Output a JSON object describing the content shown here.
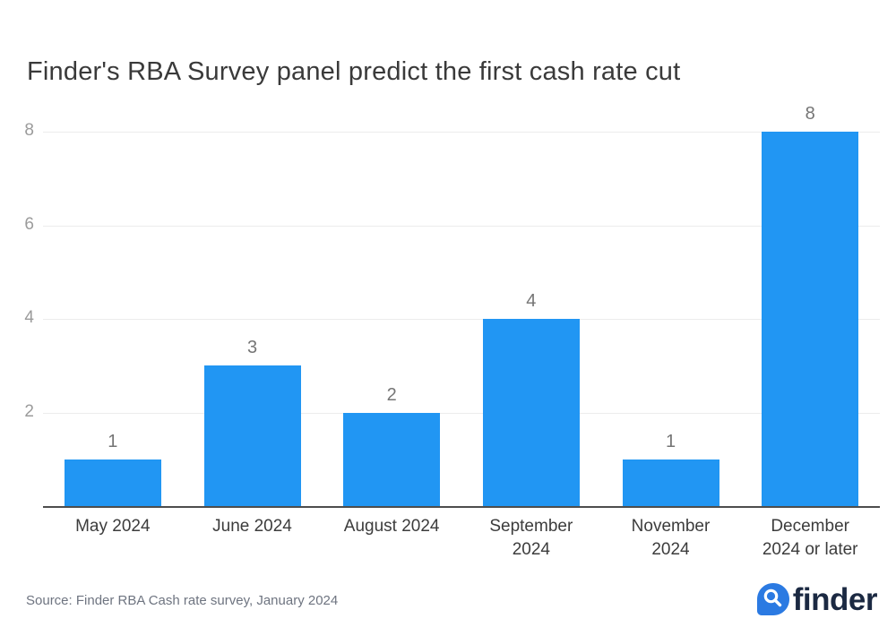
{
  "title": "Finder's RBA Survey panel predict the first cash rate cut",
  "source": "Source: Finder RBA Cash rate survey, January 2024",
  "logo": {
    "text": "finder",
    "icon": "magnifier-bubble-icon",
    "icon_color": "#2b7ae2",
    "text_color": "#1b2942"
  },
  "colors": {
    "bar": "#2196f3",
    "gridline": "#ececec",
    "axis_line": "#4d4d4d",
    "tick_label": "#9b9b9b",
    "data_label": "#757575",
    "category_label": "#3c3c3c",
    "title": "#3a3a3a",
    "source": "#6e7480"
  },
  "chart_data": {
    "type": "bar",
    "title": "Finder's RBA Survey panel predict the first cash rate cut",
    "categories": [
      "May 2024",
      "June 2024",
      "August 2024",
      "September 2024",
      "November 2024",
      "December 2024 or later"
    ],
    "category_lines": [
      [
        "May 2024"
      ],
      [
        "June 2024"
      ],
      [
        "August 2024"
      ],
      [
        "September",
        "2024"
      ],
      [
        "November",
        "2024"
      ],
      [
        "December",
        "2024 or later"
      ]
    ],
    "values": [
      1,
      3,
      2,
      4,
      1,
      8
    ],
    "data_labels": [
      "1",
      "3",
      "2",
      "4",
      "1",
      "8"
    ],
    "xlabel": "",
    "ylabel": "",
    "ylim": [
      0,
      8
    ],
    "yticks": [
      2,
      4,
      6,
      8
    ],
    "grid": true,
    "legend": false
  }
}
